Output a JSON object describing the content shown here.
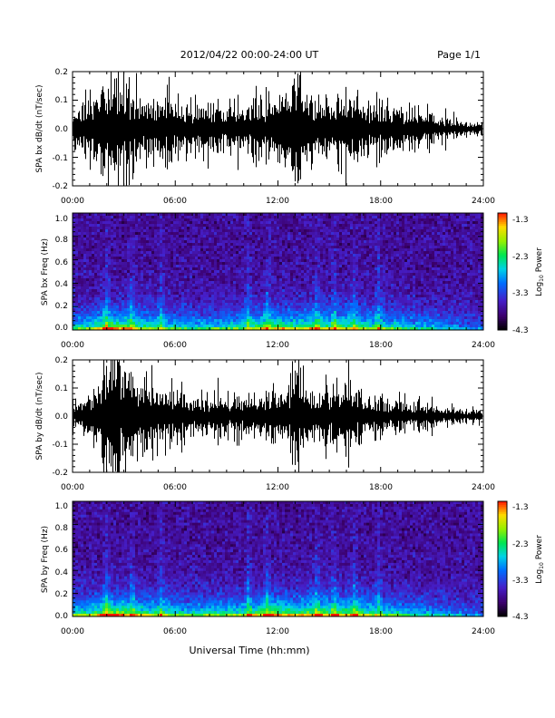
{
  "header": {
    "date_range": "2012/04/22  00:00-24:00 UT",
    "page": "Page 1/1"
  },
  "xaxis": {
    "title": "Universal Time (hh:mm)",
    "ticks": [
      "00:00",
      "06:00",
      "12:00",
      "18:00",
      "24:00"
    ]
  },
  "colorbar": {
    "label": "Log10 Power",
    "label_main": "Log",
    "label_sub": "10",
    "label_end": " Power",
    "ticks": [
      "-1.3",
      "-2.3",
      "-3.3",
      "-4.3"
    ]
  },
  "chart_data": [
    {
      "type": "line",
      "panel": "bx-waveform",
      "ylabel": "SPA bx dB/dt (nT/sec)",
      "yticks": [
        "0.2",
        "0.1",
        "0.0",
        "-0.1",
        "-0.2"
      ],
      "ylim": [
        -0.2,
        0.2
      ],
      "xlim_hours": [
        0,
        24
      ],
      "envelope": {
        "hours": [
          0,
          1,
          2,
          3,
          4,
          5,
          6,
          7,
          8,
          9,
          10,
          11,
          12,
          13,
          14,
          15,
          16,
          17,
          18,
          19,
          20,
          21,
          22,
          23,
          24
        ],
        "amplitude": [
          0.06,
          0.09,
          0.2,
          0.15,
          0.11,
          0.1,
          0.09,
          0.07,
          0.09,
          0.07,
          0.08,
          0.1,
          0.08,
          0.16,
          0.1,
          0.1,
          0.11,
          0.09,
          0.08,
          0.07,
          0.06,
          0.05,
          0.04,
          0.025,
          0.02
        ]
      }
    },
    {
      "type": "heatmap",
      "panel": "bx-spectrogram",
      "ylabel": "SPA bx Freq (Hz)",
      "yticks": [
        "1.0",
        "0.8",
        "0.6",
        "0.4",
        "0.2",
        "0.0"
      ],
      "ylim": [
        0,
        1.0
      ],
      "zlim_log10_power": [
        -4.3,
        -1.3
      ],
      "low_freq_activity": {
        "hours": [
          0,
          1,
          2,
          3,
          4,
          5,
          6,
          7,
          8,
          9,
          10,
          11,
          12,
          13,
          14,
          15,
          16,
          17,
          18,
          19,
          20,
          21,
          22,
          23,
          24
        ],
        "level": [
          0.45,
          0.5,
          0.7,
          0.65,
          0.55,
          0.5,
          0.45,
          0.4,
          0.45,
          0.45,
          0.5,
          0.6,
          0.65,
          0.55,
          0.65,
          0.6,
          0.6,
          0.55,
          0.5,
          0.45,
          0.4,
          0.35,
          0.3,
          0.25,
          0.2
        ]
      },
      "vertical_streak_hours": [
        1.9,
        3.4,
        5.1,
        10.2,
        11.3,
        14.2,
        15.2,
        16.4,
        17.8
      ]
    },
    {
      "type": "line",
      "panel": "by-waveform",
      "ylabel": "SPA by dB/dt (nT/sec)",
      "yticks": [
        "0.2",
        "0.1",
        "0.0",
        "-0.1",
        "-0.2"
      ],
      "ylim": [
        -0.2,
        0.2
      ],
      "xlim_hours": [
        0,
        24
      ],
      "envelope": {
        "hours": [
          0,
          1,
          2,
          3,
          4,
          5,
          6,
          7,
          8,
          9,
          10,
          11,
          12,
          13,
          14,
          15,
          16,
          17,
          18,
          19,
          20,
          21,
          22,
          23,
          24
        ],
        "amplitude": [
          0.04,
          0.06,
          0.2,
          0.18,
          0.12,
          0.1,
          0.09,
          0.06,
          0.06,
          0.06,
          0.07,
          0.07,
          0.07,
          0.13,
          0.08,
          0.09,
          0.11,
          0.07,
          0.06,
          0.05,
          0.05,
          0.04,
          0.03,
          0.02,
          0.02
        ]
      }
    },
    {
      "type": "heatmap",
      "panel": "by-spectrogram",
      "ylabel": "SPA by Freq (Hz)",
      "yticks": [
        "1.0",
        "0.8",
        "0.6",
        "0.4",
        "0.2",
        "0.0"
      ],
      "ylim": [
        0,
        1.0
      ],
      "zlim_log10_power": [
        -4.3,
        -1.3
      ],
      "low_freq_activity": {
        "hours": [
          0,
          1,
          2,
          3,
          4,
          5,
          6,
          7,
          8,
          9,
          10,
          11,
          12,
          13,
          14,
          15,
          16,
          17,
          18,
          19,
          20,
          21,
          22,
          23,
          24
        ],
        "level": [
          0.5,
          0.55,
          0.75,
          0.7,
          0.6,
          0.55,
          0.5,
          0.45,
          0.5,
          0.5,
          0.55,
          0.65,
          0.7,
          0.6,
          0.7,
          0.65,
          0.65,
          0.6,
          0.5,
          0.45,
          0.4,
          0.35,
          0.3,
          0.25,
          0.2
        ]
      },
      "vertical_streak_hours": [
        1.9,
        3.4,
        5.1,
        10.2,
        11.3,
        14.2,
        15.2,
        16.4,
        17.8
      ]
    }
  ]
}
